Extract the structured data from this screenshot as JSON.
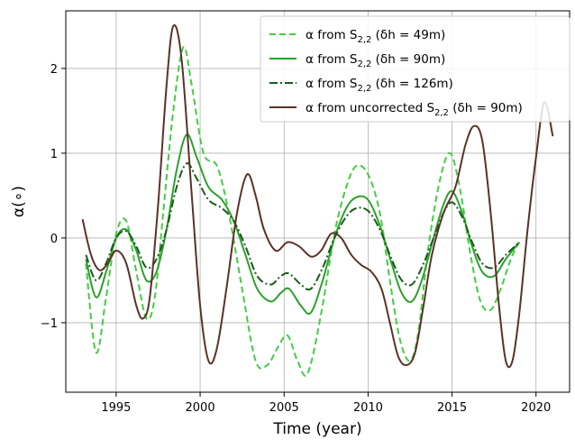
{
  "chart_data": {
    "type": "line",
    "title": "",
    "xlabel": "Time (year)",
    "ylabel": "α(∘)",
    "xlim": [
      1992.0,
      2022.0
    ],
    "ylim": [
      -1.82,
      2.68
    ],
    "xticks": [
      1995,
      2000,
      2005,
      2010,
      2015,
      2020
    ],
    "yticks": [
      -1,
      0,
      1,
      2
    ],
    "ytick_labels": [
      "−1",
      "0",
      "1",
      "2"
    ],
    "grid": true,
    "legend_position": "top-right",
    "series": [
      {
        "name": "α from S2,2 (δh = 49m)",
        "legend": {
          "pre": "α from S",
          "sub": "2,2",
          "mid": " (δh = 49m)"
        },
        "color": "#44cc44",
        "style": "dashed",
        "points": [
          [
            1993.2,
            -0.3
          ],
          [
            1993.8,
            -1.35
          ],
          [
            1994.4,
            -0.7
          ],
          [
            1995.0,
            0.05
          ],
          [
            1995.6,
            0.2
          ],
          [
            1996.2,
            -0.4
          ],
          [
            1996.8,
            -0.95
          ],
          [
            1997.3,
            -0.7
          ],
          [
            1997.8,
            0.3
          ],
          [
            1998.4,
            1.5
          ],
          [
            1999.0,
            2.25
          ],
          [
            1999.5,
            1.8
          ],
          [
            2000.2,
            1.0
          ],
          [
            2001.0,
            0.85
          ],
          [
            2001.7,
            0.3
          ],
          [
            2002.5,
            -0.6
          ],
          [
            2003.3,
            -1.45
          ],
          [
            2004.0,
            -1.5
          ],
          [
            2004.6,
            -1.3
          ],
          [
            2005.2,
            -1.15
          ],
          [
            2005.8,
            -1.45
          ],
          [
            2006.4,
            -1.6
          ],
          [
            2007.2,
            -0.9
          ],
          [
            2008.0,
            0.05
          ],
          [
            2008.7,
            0.6
          ],
          [
            2009.3,
            0.85
          ],
          [
            2010.0,
            0.75
          ],
          [
            2010.7,
            0.3
          ],
          [
            2011.3,
            -0.5
          ],
          [
            2011.9,
            -1.2
          ],
          [
            2012.5,
            -1.45
          ],
          [
            2013.0,
            -1.1
          ],
          [
            2013.6,
            -0.1
          ],
          [
            2014.3,
            0.7
          ],
          [
            2014.9,
            1.0
          ],
          [
            2015.5,
            0.55
          ],
          [
            2016.1,
            -0.2
          ],
          [
            2016.7,
            -0.75
          ],
          [
            2017.3,
            -0.85
          ],
          [
            2017.9,
            -0.6
          ],
          [
            2018.5,
            -0.25
          ],
          [
            2019.0,
            -0.05
          ]
        ]
      },
      {
        "name": "α from S2,2 (δh = 90m)",
        "legend": {
          "pre": "α from S",
          "sub": "2,2",
          "mid": " (δh = 90m)"
        },
        "color": "#2ca02c",
        "style": "solid",
        "points": [
          [
            1993.2,
            -0.25
          ],
          [
            1993.8,
            -0.7
          ],
          [
            1994.4,
            -0.4
          ],
          [
            1995.0,
            0.0
          ],
          [
            1995.6,
            0.1
          ],
          [
            1996.2,
            -0.15
          ],
          [
            1996.8,
            -0.5
          ],
          [
            1997.4,
            -0.4
          ],
          [
            1998.0,
            0.1
          ],
          [
            1998.6,
            0.8
          ],
          [
            1999.2,
            1.22
          ],
          [
            1999.8,
            0.95
          ],
          [
            2000.5,
            0.6
          ],
          [
            2001.3,
            0.45
          ],
          [
            2002.0,
            0.2
          ],
          [
            2002.7,
            -0.2
          ],
          [
            2003.4,
            -0.6
          ],
          [
            2004.2,
            -0.75
          ],
          [
            2004.8,
            -0.65
          ],
          [
            2005.3,
            -0.6
          ],
          [
            2006.0,
            -0.8
          ],
          [
            2006.6,
            -0.88
          ],
          [
            2007.3,
            -0.5
          ],
          [
            2008.0,
            0.0
          ],
          [
            2008.7,
            0.35
          ],
          [
            2009.3,
            0.48
          ],
          [
            2010.0,
            0.45
          ],
          [
            2010.7,
            0.15
          ],
          [
            2011.4,
            -0.3
          ],
          [
            2012.0,
            -0.65
          ],
          [
            2012.6,
            -0.75
          ],
          [
            2013.2,
            -0.5
          ],
          [
            2013.9,
            0.0
          ],
          [
            2014.5,
            0.4
          ],
          [
            2015.0,
            0.55
          ],
          [
            2015.6,
            0.3
          ],
          [
            2016.2,
            -0.1
          ],
          [
            2016.8,
            -0.4
          ],
          [
            2017.5,
            -0.45
          ],
          [
            2018.2,
            -0.25
          ],
          [
            2019.0,
            -0.05
          ]
        ]
      },
      {
        "name": "α from S2,2 (δh = 126m)",
        "legend": {
          "pre": "α from S",
          "sub": "2,2",
          "mid": " (δh = 126m)"
        },
        "color": "#1a5c1a",
        "style": "dashdot",
        "points": [
          [
            1993.2,
            -0.2
          ],
          [
            1993.8,
            -0.5
          ],
          [
            1994.4,
            -0.3
          ],
          [
            1995.0,
            0.0
          ],
          [
            1995.6,
            0.08
          ],
          [
            1996.2,
            -0.1
          ],
          [
            1996.8,
            -0.35
          ],
          [
            1997.4,
            -0.25
          ],
          [
            1998.0,
            0.1
          ],
          [
            1998.6,
            0.6
          ],
          [
            1999.2,
            0.88
          ],
          [
            1999.8,
            0.7
          ],
          [
            2000.5,
            0.45
          ],
          [
            2001.3,
            0.35
          ],
          [
            2002.0,
            0.2
          ],
          [
            2002.7,
            -0.1
          ],
          [
            2003.4,
            -0.45
          ],
          [
            2004.2,
            -0.55
          ],
          [
            2004.8,
            -0.45
          ],
          [
            2005.3,
            -0.42
          ],
          [
            2006.0,
            -0.55
          ],
          [
            2006.6,
            -0.6
          ],
          [
            2007.3,
            -0.35
          ],
          [
            2008.0,
            0.0
          ],
          [
            2008.7,
            0.25
          ],
          [
            2009.3,
            0.35
          ],
          [
            2010.0,
            0.32
          ],
          [
            2010.7,
            0.1
          ],
          [
            2011.4,
            -0.25
          ],
          [
            2012.0,
            -0.5
          ],
          [
            2012.6,
            -0.55
          ],
          [
            2013.2,
            -0.35
          ],
          [
            2013.9,
            0.0
          ],
          [
            2014.5,
            0.3
          ],
          [
            2015.0,
            0.42
          ],
          [
            2015.6,
            0.25
          ],
          [
            2016.2,
            -0.05
          ],
          [
            2016.8,
            -0.3
          ],
          [
            2017.5,
            -0.35
          ],
          [
            2018.2,
            -0.2
          ],
          [
            2019.0,
            -0.05
          ]
        ]
      },
      {
        "name": "α from uncorrected S2,2 (δh = 90m)",
        "legend": {
          "pre": "α from uncorrected S",
          "sub": "2,2",
          "mid": " (δh = 90m)"
        },
        "color": "#5a3228",
        "style": "solid",
        "points": [
          [
            1993.0,
            0.22
          ],
          [
            1993.5,
            -0.2
          ],
          [
            1994.0,
            -0.38
          ],
          [
            1994.5,
            -0.3
          ],
          [
            1995.0,
            -0.15
          ],
          [
            1995.6,
            -0.3
          ],
          [
            1996.2,
            -0.8
          ],
          [
            1996.6,
            -0.95
          ],
          [
            1997.0,
            -0.7
          ],
          [
            1997.5,
            0.4
          ],
          [
            1998.0,
            1.8
          ],
          [
            1998.4,
            2.5
          ],
          [
            1998.9,
            2.1
          ],
          [
            1999.5,
            0.5
          ],
          [
            2000.0,
            -0.8
          ],
          [
            2000.5,
            -1.45
          ],
          [
            2001.0,
            -1.3
          ],
          [
            2001.6,
            -0.55
          ],
          [
            2002.2,
            0.3
          ],
          [
            2002.8,
            0.75
          ],
          [
            2003.3,
            0.5
          ],
          [
            2003.8,
            0.1
          ],
          [
            2004.5,
            -0.15
          ],
          [
            2005.2,
            -0.05
          ],
          [
            2005.9,
            -0.1
          ],
          [
            2006.6,
            -0.22
          ],
          [
            2007.2,
            -0.15
          ],
          [
            2007.8,
            0.05
          ],
          [
            2008.4,
            0.0
          ],
          [
            2009.0,
            -0.2
          ],
          [
            2009.6,
            -0.32
          ],
          [
            2010.2,
            -0.4
          ],
          [
            2010.8,
            -0.6
          ],
          [
            2011.3,
            -1.0
          ],
          [
            2011.8,
            -1.4
          ],
          [
            2012.3,
            -1.5
          ],
          [
            2012.8,
            -1.35
          ],
          [
            2013.3,
            -0.8
          ],
          [
            2013.8,
            -0.2
          ],
          [
            2014.5,
            0.3
          ],
          [
            2015.2,
            0.6
          ],
          [
            2015.8,
            1.1
          ],
          [
            2016.3,
            1.32
          ],
          [
            2016.8,
            1.15
          ],
          [
            2017.3,
            0.3
          ],
          [
            2017.8,
            -0.8
          ],
          [
            2018.2,
            -1.45
          ],
          [
            2018.6,
            -1.45
          ],
          [
            2019.0,
            -0.9
          ],
          [
            2019.5,
            0.1
          ],
          [
            2020.0,
            0.95
          ],
          [
            2020.5,
            1.6
          ],
          [
            2021.0,
            1.2
          ]
        ]
      }
    ]
  }
}
